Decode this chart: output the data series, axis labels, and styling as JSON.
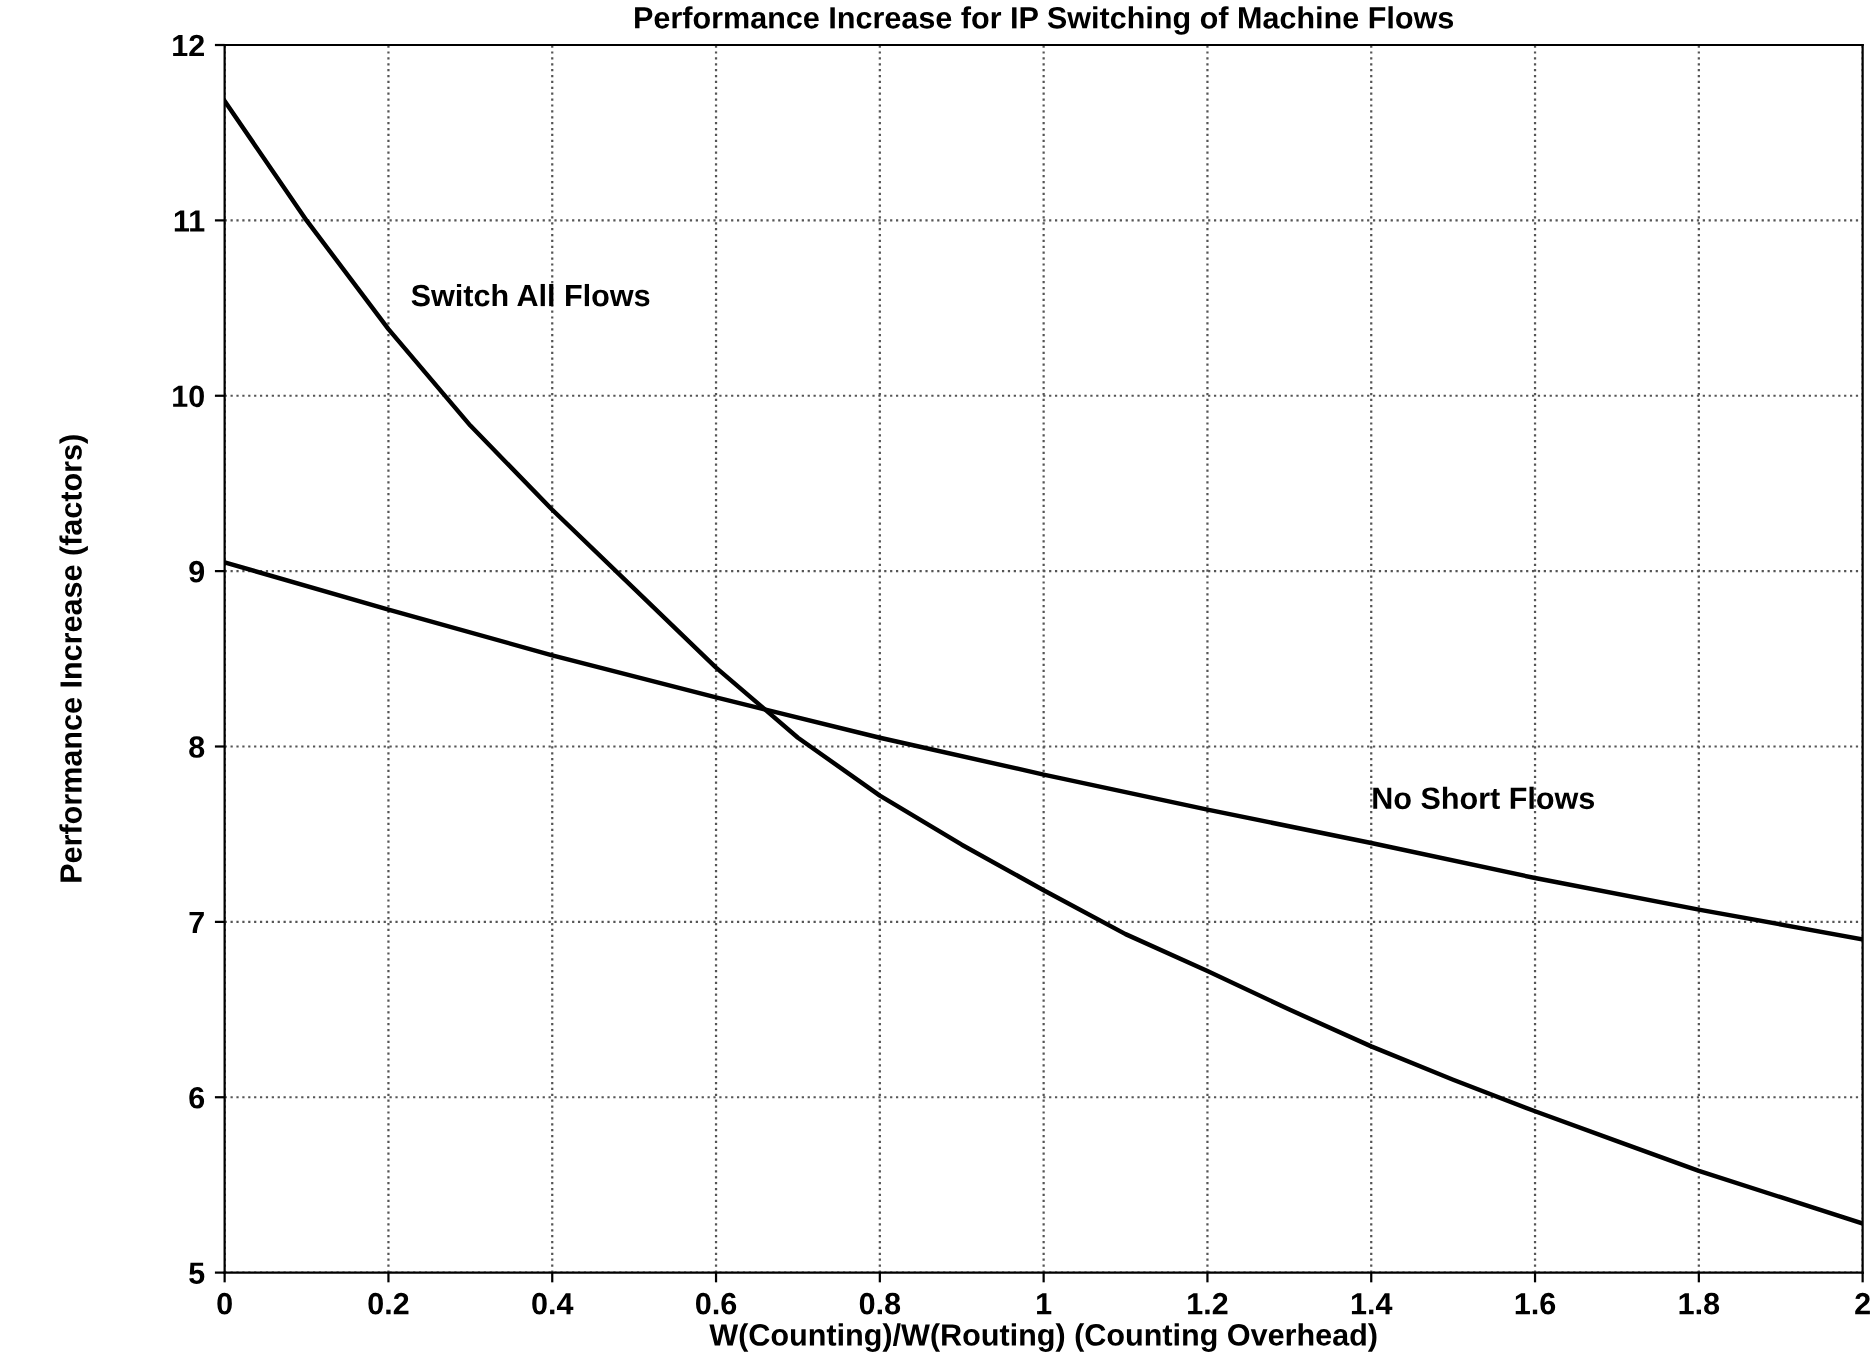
{
  "chart_data": {
    "type": "line",
    "title": "Performance Increase for IP Switching of Machine Flows",
    "xlabel": "W(Counting)/W(Routing) (Counting Overhead)",
    "ylabel": "Performance Increase (factors)",
    "series": [
      {
        "name": "Switch All Flows",
        "color": "#000000",
        "x": [
          0,
          0.1,
          0.2,
          0.3,
          0.4,
          0.5,
          0.6,
          0.7,
          0.8,
          0.9,
          1.0,
          1.1,
          1.2,
          1.3,
          1.4,
          1.5,
          1.6,
          1.7,
          1.8,
          1.9,
          2.0
        ],
        "values": [
          11.68,
          11.0,
          10.38,
          9.83,
          9.35,
          8.9,
          8.45,
          8.05,
          7.72,
          7.44,
          7.18,
          6.93,
          6.72,
          6.5,
          6.29,
          6.1,
          5.92,
          5.75,
          5.58,
          5.43,
          5.28
        ]
      },
      {
        "name": "No Short Flows",
        "color": "#000000",
        "x": [
          0,
          0.2,
          0.4,
          0.6,
          0.8,
          1.0,
          1.2,
          1.4,
          1.6,
          1.8,
          2.0
        ],
        "values": [
          9.05,
          8.78,
          8.52,
          8.28,
          8.05,
          7.84,
          7.64,
          7.45,
          7.25,
          7.07,
          6.9
        ]
      }
    ],
    "xlim": [
      0,
      2
    ],
    "xticks": [
      0,
      0.2,
      0.4,
      0.6,
      0.8,
      1,
      1.2,
      1.4,
      1.6,
      1.8,
      2
    ],
    "ylim": [
      5,
      12
    ],
    "yticks": [
      5,
      6,
      7,
      8,
      9,
      10,
      11,
      12
    ],
    "grid": true,
    "line_style": "solid",
    "marker": "none",
    "legend": false
  }
}
